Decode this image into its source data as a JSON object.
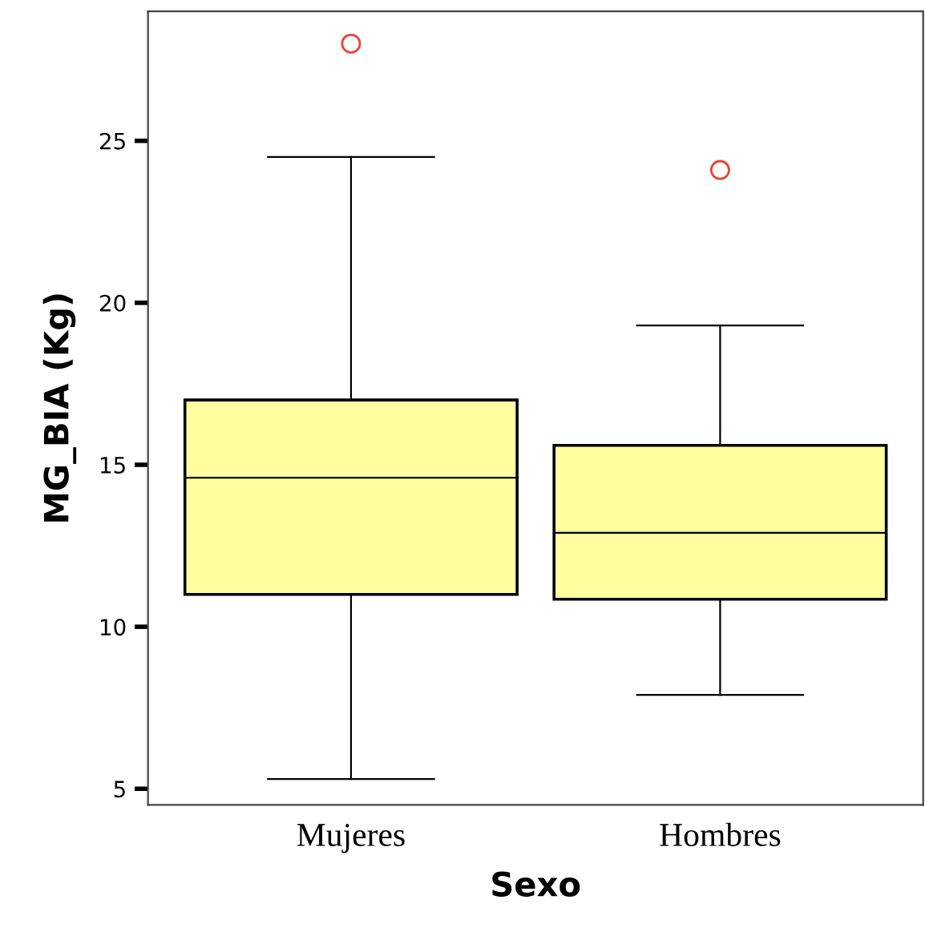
{
  "chart_data": {
    "type": "box",
    "xlabel": "Sexo",
    "ylabel": "MG_BIA (Kg)",
    "categories": [
      "Mujeres",
      "Hombres"
    ],
    "boxes": [
      {
        "low": 5.3,
        "q1": 11.0,
        "median": 14.6,
        "q3": 17.0,
        "high": 24.5,
        "outliers": [
          28.0
        ]
      },
      {
        "low": 7.9,
        "q1": 10.85,
        "median": 12.9,
        "q3": 15.6,
        "high": 19.3,
        "outliers": [
          24.1
        ]
      }
    ],
    "color": "#ffffa0",
    "ylim": [
      4.5,
      29
    ],
    "yticks": [
      5,
      10,
      15,
      20,
      25
    ],
    "grid": false
  }
}
